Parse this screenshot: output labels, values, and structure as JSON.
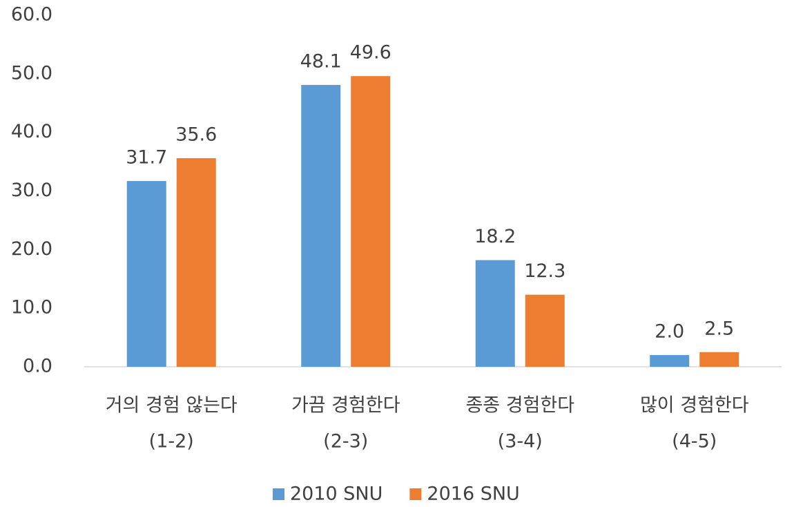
{
  "chart_data": {
    "type": "bar",
    "categories": [
      [
        "거의 경험 않는다",
        "(1-2)"
      ],
      [
        "가끔 경험한다",
        "(2-3)"
      ],
      [
        "종종 경험한다",
        "(3-4)"
      ],
      [
        "많이 경험한다",
        "(4-5)"
      ]
    ],
    "series": [
      {
        "name": "2010 SNU",
        "color": "#5b9bd5",
        "values": [
          31.7,
          48.1,
          18.2,
          2.0
        ],
        "value_labels": [
          "31.7",
          "48.1",
          "18.2",
          "2.0"
        ]
      },
      {
        "name": "2016 SNU",
        "color": "#ed7d31",
        "values": [
          35.6,
          49.6,
          12.3,
          2.5
        ],
        "value_labels": [
          "35.6",
          "49.6",
          "12.3",
          "2.5"
        ]
      }
    ],
    "ylim": [
      0,
      60
    ],
    "yticks": [
      {
        "value": 0,
        "label": "0.0"
      },
      {
        "value": 10,
        "label": "10.0"
      },
      {
        "value": 20,
        "label": "20.0"
      },
      {
        "value": 30,
        "label": "30.0"
      },
      {
        "value": 40,
        "label": "40.0"
      },
      {
        "value": 50,
        "label": "50.0"
      },
      {
        "value": 60,
        "label": "60.0"
      }
    ],
    "grid": false,
    "legend": "bottom"
  }
}
